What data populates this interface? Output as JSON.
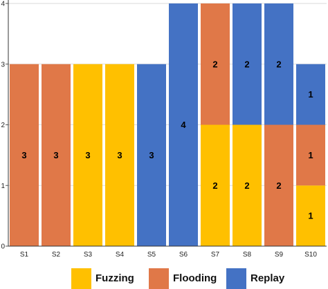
{
  "chart_data": {
    "type": "bar",
    "stacked": true,
    "categories": [
      "S1",
      "S2",
      "S3",
      "S4",
      "S5",
      "S6",
      "S7",
      "S8",
      "S9",
      "S10"
    ],
    "series": [
      {
        "name": "Fuzzing",
        "color": "#FFC000",
        "values": [
          0,
          0,
          3,
          3,
          0,
          0,
          2,
          2,
          0,
          1
        ]
      },
      {
        "name": "Flooding",
        "color": "#E07848",
        "values": [
          3,
          3,
          0,
          0,
          0,
          0,
          2,
          0,
          2,
          1
        ]
      },
      {
        "name": "Replay",
        "color": "#4472C4",
        "values": [
          0,
          0,
          0,
          0,
          3,
          4,
          0,
          2,
          2,
          1
        ]
      }
    ],
    "yticks": [
      "0",
      "1",
      "2",
      "3",
      "4"
    ],
    "ylim": [
      0,
      4
    ],
    "grid": true,
    "legend": "bottom",
    "title": "",
    "xlabel": "",
    "ylabel": ""
  }
}
